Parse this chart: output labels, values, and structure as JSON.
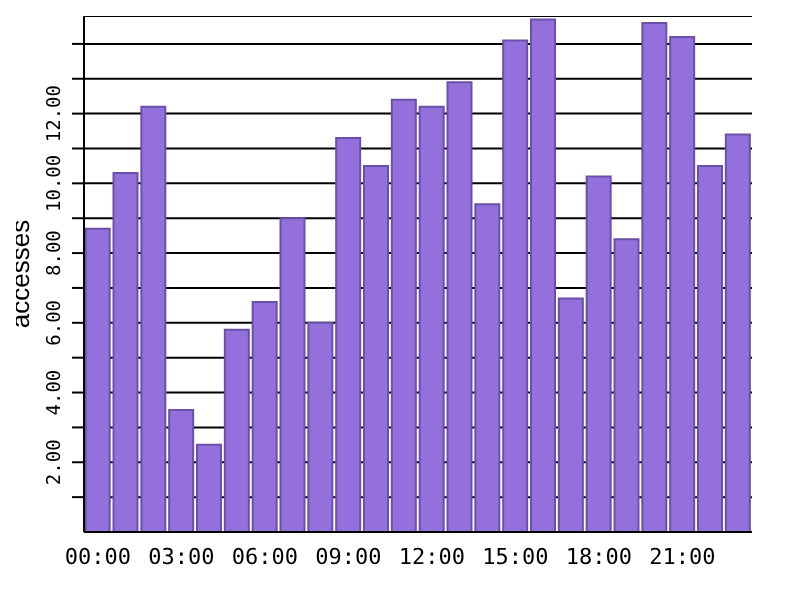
{
  "chart_data": {
    "type": "bar",
    "ylabel": "accesses",
    "categories": [
      "00:00",
      null,
      null,
      "03:00",
      null,
      null,
      "06:00",
      null,
      null,
      "09:00",
      null,
      null,
      "12:00",
      null,
      null,
      "15:00",
      null,
      null,
      "18:00",
      null,
      null,
      "21:00",
      null,
      null
    ],
    "values": [
      8.7,
      10.3,
      12.2,
      3.5,
      2.5,
      5.8,
      6.6,
      9.0,
      6.0,
      11.3,
      10.5,
      12.4,
      12.2,
      12.9,
      9.4,
      14.1,
      14.7,
      6.7,
      10.2,
      8.4,
      14.6,
      14.2,
      10.5,
      11.4
    ],
    "color": "#9370db",
    "ylim": [
      0,
      14.8
    ],
    "yticks": [
      {
        "value": 1,
        "label": null
      },
      {
        "value": 2,
        "label": "2.00"
      },
      {
        "value": 3,
        "label": null
      },
      {
        "value": 4,
        "label": "4.00"
      },
      {
        "value": 5,
        "label": null
      },
      {
        "value": 6,
        "label": "6.00"
      },
      {
        "value": 7,
        "label": null
      },
      {
        "value": 8,
        "label": "8.00"
      },
      {
        "value": 9,
        "label": null
      },
      {
        "value": 10,
        "label": "10.00"
      },
      {
        "value": 11,
        "label": null
      },
      {
        "value": 12,
        "label": "12.00"
      },
      {
        "value": 13,
        "label": null
      },
      {
        "value": 14,
        "label": null
      }
    ],
    "grid": "y"
  }
}
